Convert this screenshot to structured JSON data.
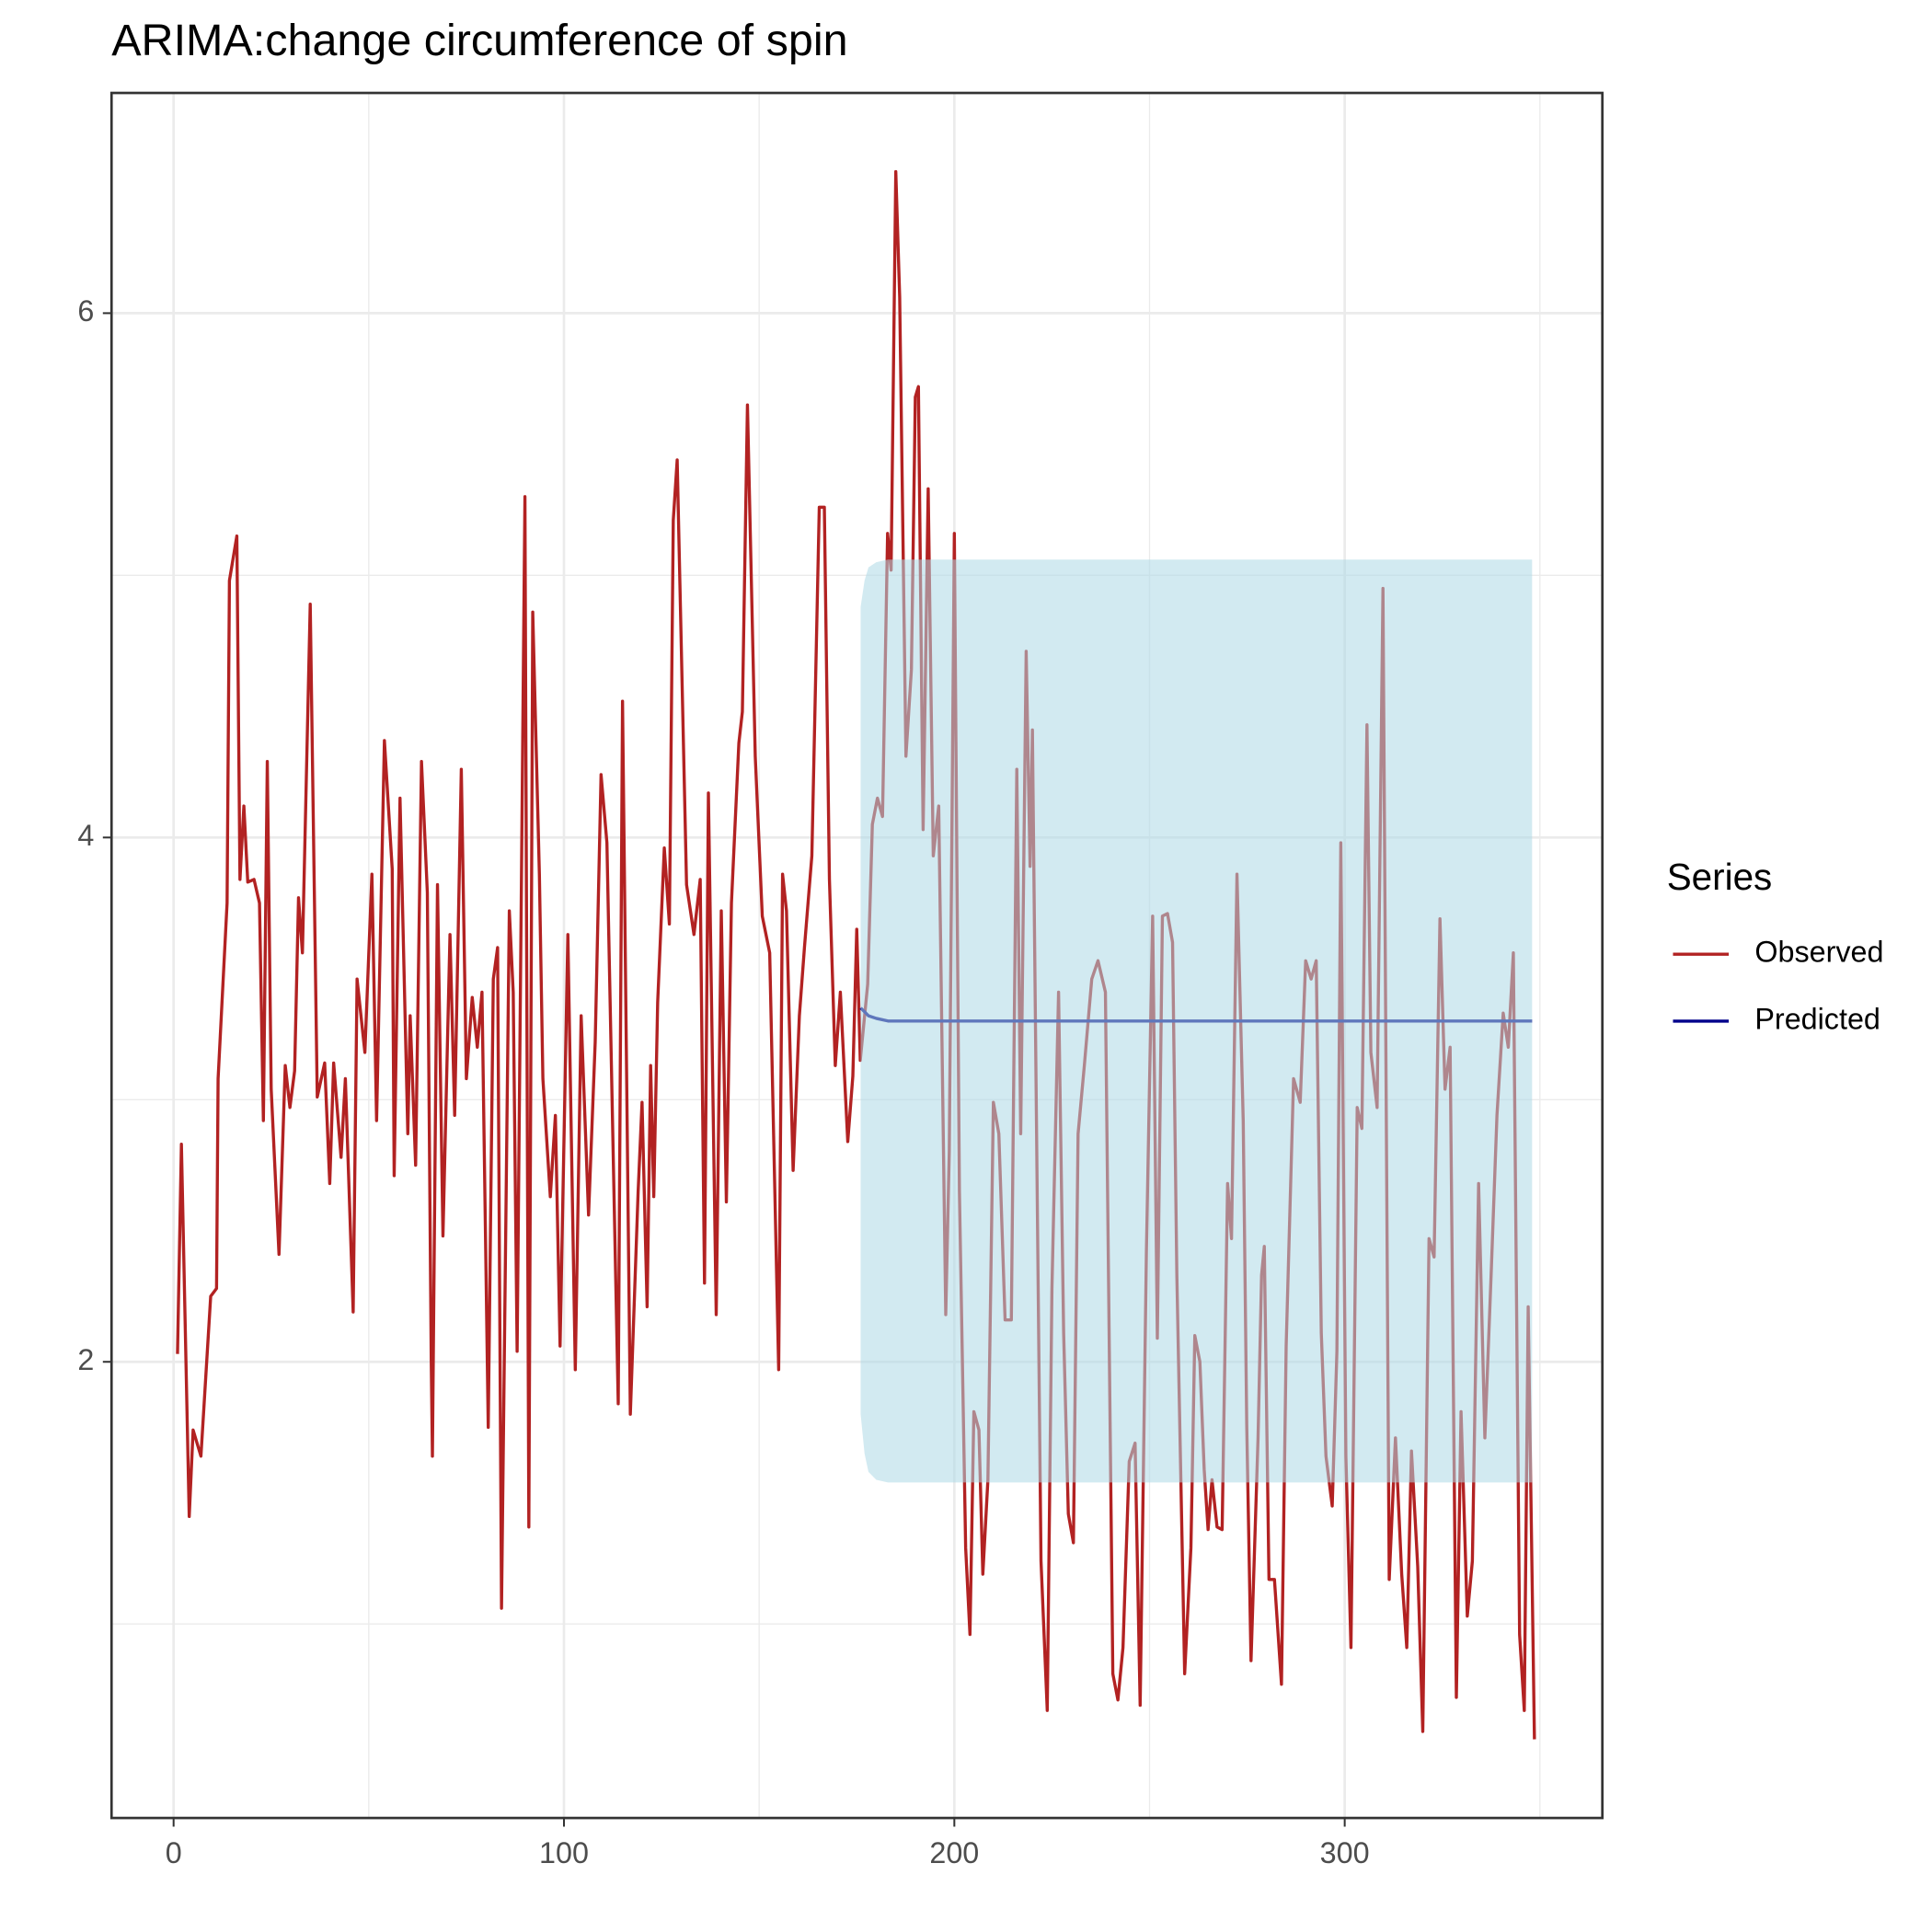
{
  "chart_data": {
    "type": "line",
    "title": "ARIMA:change circumference of spin",
    "legend_title": "Series",
    "legend_position": "right",
    "grid": true,
    "xlim": [
      -15.9,
      366
    ],
    "ylim": [
      0.26,
      6.84
    ],
    "xticks": [
      0,
      100,
      200,
      300
    ],
    "yticks": [
      2,
      4,
      6
    ],
    "minor_xticks": [
      50,
      150,
      250,
      350
    ],
    "minor_yticks": [
      1,
      3,
      5
    ],
    "ribbon": {
      "color": "#add8e6",
      "opacity": 0.55,
      "x": [
        176,
        177,
        178,
        180,
        183,
        186,
        348
      ],
      "lower": [
        1.8,
        1.65,
        1.58,
        1.55,
        1.54,
        1.54,
        1.54
      ],
      "upper": [
        4.88,
        4.98,
        5.03,
        5.05,
        5.06,
        5.06,
        5.06
      ]
    },
    "series": [
      {
        "name": "Observed",
        "color": "#b22222",
        "x": [
          1,
          2,
          4,
          5,
          7,
          9.5,
          11,
          11.4,
          13.7,
          14.3,
          16.2,
          17,
          18,
          19,
          20.6,
          22,
          23,
          24,
          25,
          27,
          28.6,
          29.8,
          31,
          32,
          33,
          35,
          36.8,
          38.7,
          40,
          41,
          42.9,
          44,
          46,
          47,
          49,
          50.8,
          52,
          54,
          56,
          56.5,
          58,
          60,
          60.6,
          62,
          63.5,
          65,
          66,
          66.3,
          67.6,
          69,
          70.8,
          72,
          73.7,
          75,
          76.5,
          77.8,
          79,
          80.6,
          81.9,
          83,
          84,
          86,
          87,
          88,
          90,
          91,
          92,
          93.7,
          94.6,
          96.5,
          97.8,
          99,
          101,
          102.9,
          104.4,
          106.3,
          108,
          109.5,
          111,
          113.9,
          115,
          117,
          119,
          120,
          121.3,
          122.2,
          123,
          124,
          125.7,
          127,
          128,
          129,
          131.4,
          133.3,
          134.9,
          136,
          137,
          139,
          140.3,
          141.6,
          142.9,
          144.8,
          145.7,
          147,
          149,
          150.8,
          152.7,
          155,
          156,
          157,
          158.7,
          160.3,
          161.6,
          163.5,
          165.4,
          166.7,
          168,
          169.5,
          170.8,
          172.7,
          174,
          175,
          175.9,
          177.8,
          179,
          180.3,
          181.6,
          182.9,
          183.8,
          185,
          186,
          187.6,
          189,
          190,
          190.8,
          192,
          193.3,
          194.6,
          196,
          197.8,
          198.7,
          200,
          201.3,
          202.9,
          204,
          205,
          206.3,
          207.3,
          208.6,
          210,
          211.4,
          213,
          214.6,
          216,
          217,
          218.4,
          219.4,
          220,
          222.2,
          223.8,
          225,
          226.7,
          228,
          229.2,
          230.5,
          231.7,
          233.3,
          235.2,
          236.8,
          238.7,
          240.6,
          241.9,
          243.2,
          244.8,
          246.3,
          247.6,
          249.2,
          250.8,
          252,
          253.3,
          254.6,
          255.9,
          257,
          259,
          260.6,
          261.6,
          262.9,
          264,
          265,
          266,
          267.3,
          268.6,
          270,
          271,
          272.4,
          274,
          274.9,
          276,
          277.8,
          278.7,
          279.4,
          280.6,
          282,
          283.8,
          285,
          286.9,
          288.6,
          290,
          291.4,
          292.7,
          294,
          295.2,
          296.8,
          298,
          299,
          300.3,
          301.6,
          303.2,
          304.4,
          305.7,
          306.7,
          308.3,
          309.8,
          311.4,
          313,
          314.6,
          315.9,
          317.1,
          318.7,
          320,
          321.6,
          322.9,
          324.4,
          325.7,
          327,
          328.6,
          329.8,
          331.4,
          332.7,
          334.3,
          335.9,
          337.5,
          339,
          340.6,
          341.9,
          343.2,
          344.8,
          346,
          347,
          348.6
        ],
        "values": [
          2.03,
          2.83,
          1.41,
          1.74,
          1.64,
          2.25,
          2.28,
          3.08,
          3.75,
          4.98,
          5.15,
          3.84,
          4.12,
          3.83,
          3.84,
          3.75,
          2.92,
          4.29,
          3.04,
          2.41,
          3.13,
          2.97,
          3.11,
          3.77,
          3.56,
          4.89,
          3.01,
          3.14,
          2.68,
          3.14,
          2.78,
          3.08,
          2.19,
          3.46,
          3.18,
          3.86,
          2.92,
          4.37,
          3.88,
          2.71,
          4.15,
          2.87,
          3.32,
          2.75,
          4.29,
          3.79,
          2.0,
          1.64,
          3.82,
          2.48,
          3.63,
          2.94,
          4.26,
          3.08,
          3.39,
          3.2,
          3.41,
          1.75,
          3.46,
          3.58,
          1.06,
          3.72,
          3.41,
          2.04,
          5.3,
          1.37,
          4.86,
          3.86,
          3.08,
          2.63,
          2.94,
          2.06,
          3.63,
          1.97,
          3.32,
          2.56,
          3.22,
          4.24,
          3.98,
          1.84,
          4.52,
          1.8,
          2.65,
          2.99,
          2.21,
          3.13,
          2.63,
          3.37,
          3.96,
          3.67,
          5.21,
          5.44,
          3.82,
          3.63,
          3.84,
          2.3,
          4.17,
          2.18,
          3.72,
          2.61,
          3.75,
          4.36,
          4.48,
          5.65,
          4.31,
          3.7,
          3.56,
          1.97,
          3.86,
          3.72,
          2.73,
          3.32,
          3.58,
          3.93,
          5.26,
          5.26,
          3.84,
          3.13,
          3.41,
          2.84,
          3.09,
          3.65,
          3.15,
          3.44,
          4.05,
          4.15,
          4.08,
          5.16,
          5.02,
          6.54,
          6.06,
          4.31,
          4.64,
          5.68,
          5.72,
          4.03,
          5.33,
          3.93,
          4.12,
          2.18,
          2.8,
          5.16,
          2.65,
          1.29,
          0.96,
          1.81,
          1.74,
          1.19,
          1.55,
          2.99,
          2.87,
          2.16,
          2.16,
          4.26,
          2.87,
          4.71,
          3.89,
          4.41,
          1.24,
          0.67,
          2.28,
          3.41,
          2.11,
          1.42,
          1.31,
          2.87,
          3.13,
          3.46,
          3.53,
          3.41,
          0.81,
          0.71,
          0.91,
          1.62,
          1.69,
          0.69,
          2.42,
          3.7,
          2.09,
          3.7,
          3.71,
          3.6,
          2.33,
          0.81,
          1.29,
          2.1,
          2.0,
          1.59,
          1.36,
          1.55,
          1.37,
          1.36,
          2.68,
          2.47,
          3.86,
          2.92,
          1.76,
          0.86,
          1.71,
          2.33,
          2.44,
          1.17,
          1.17,
          0.77,
          2.06,
          3.08,
          2.99,
          3.53,
          3.46,
          3.53,
          2.11,
          1.64,
          1.45,
          2.04,
          3.98,
          1.64,
          0.91,
          2.97,
          2.89,
          4.43,
          3.18,
          2.97,
          4.95,
          1.17,
          1.71,
          1.19,
          0.91,
          1.66,
          1.22,
          0.59,
          2.47,
          2.4,
          3.69,
          3.04,
          3.2,
          0.72,
          1.81,
          1.03,
          1.24,
          2.68,
          1.71,
          2.33,
          2.94,
          3.33,
          3.2,
          3.56,
          0.96,
          0.67,
          2.21,
          0.56
        ]
      },
      {
        "name": "Predicted",
        "color": "#00008b",
        "x": [
          176,
          178,
          180,
          183,
          186,
          190,
          348
        ],
        "values": [
          3.35,
          3.32,
          3.31,
          3.3,
          3.3,
          3.3,
          3.3
        ]
      }
    ]
  }
}
